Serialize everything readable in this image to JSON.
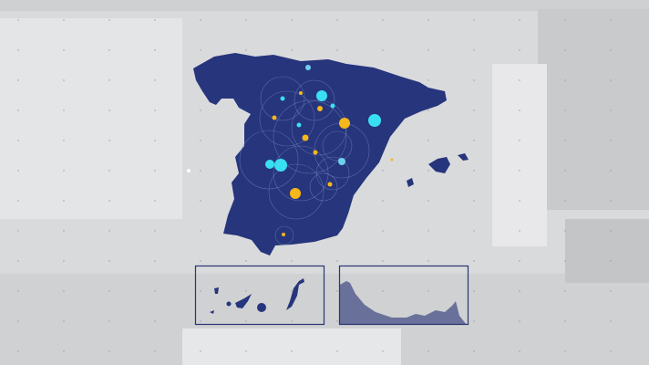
{
  "colors": {
    "background": "#d9dadc",
    "map_fill": "#26357c",
    "marker_cyan": "#39e0f2",
    "marker_light_blue": "#6fd0ee",
    "marker_yellow": "#f5b719",
    "inset_border": "#2a3570",
    "inset_fill_ceuta": "#69719a"
  },
  "insets": [
    {
      "name": "canary-islands",
      "icon": "canary-islands-map-icon"
    },
    {
      "name": "ceuta-melilla",
      "icon": "coastline-map-icon"
    }
  ]
}
